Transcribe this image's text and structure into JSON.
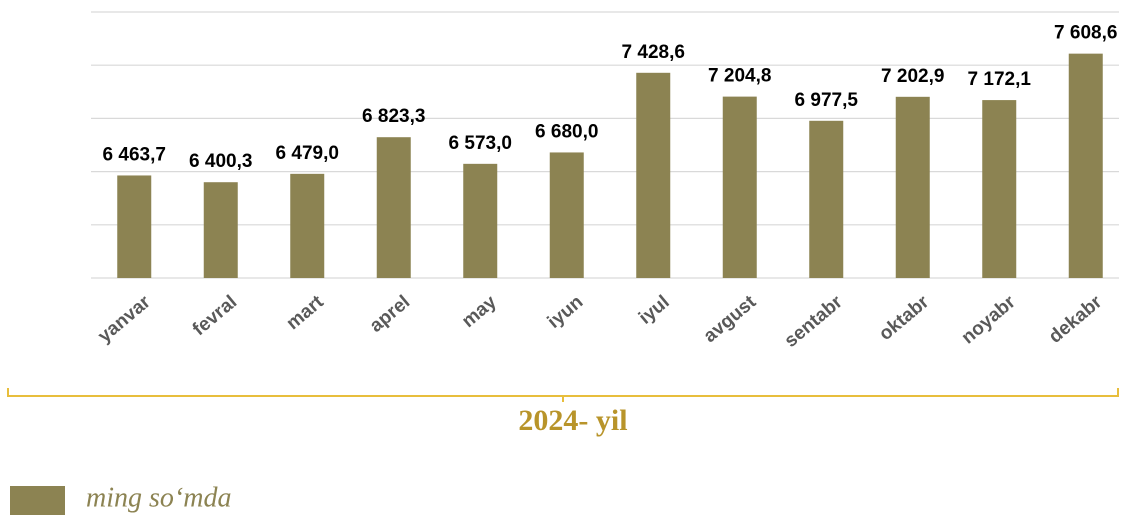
{
  "chart_data": {
    "type": "bar",
    "categories": [
      "yanvar",
      "fevral",
      "mart",
      "aprel",
      "may",
      "iyun",
      "iyul",
      "avgust",
      "sentabr",
      "oktabr",
      "noyabr",
      "dekabr"
    ],
    "values": [
      6463.7,
      6400.3,
      6479.0,
      6823.3,
      6573.0,
      6680.0,
      7428.6,
      7204.8,
      6977.5,
      7202.9,
      7172.1,
      7608.6
    ],
    "value_labels": [
      "6 463,7",
      "6 400,3",
      "6 479,0",
      "6 823,3",
      "6 573,0",
      "6 680,0",
      "7 428,6",
      "7 204,8",
      "6 977,5",
      "7 202,9",
      "7 172,1",
      "7 608,6"
    ],
    "color": "#8c8352",
    "ylim": [
      5500,
      8000
    ],
    "yticks": [
      5500,
      6000,
      6500,
      7000,
      7500,
      8000
    ],
    "grid": true,
    "annotation": "2024- yil",
    "legend": "ming so‘mda"
  }
}
